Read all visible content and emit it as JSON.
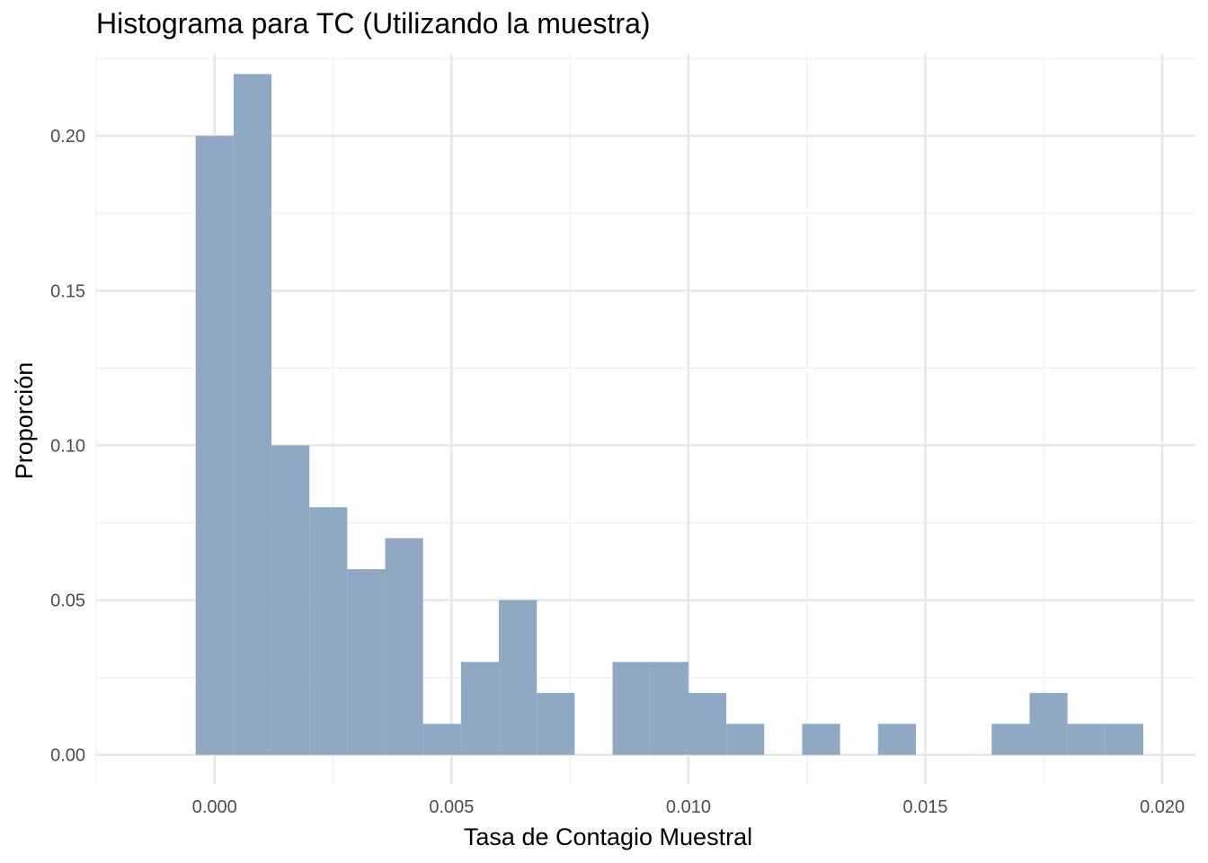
{
  "chart_data": {
    "type": "bar",
    "title": "Histograma para TC (Utilizando la muestra)",
    "xlabel": "Tasa de Contagio Muestral",
    "ylabel": "Proporción",
    "xlim": [
      -0.0025,
      0.0207
    ],
    "ylim": [
      -0.0094,
      0.2265
    ],
    "x_ticks": [
      0.0,
      0.005,
      0.01,
      0.015,
      0.02
    ],
    "x_tick_labels": [
      "0.000",
      "0.005",
      "0.010",
      "0.015",
      "0.020"
    ],
    "y_ticks": [
      0.0,
      0.05,
      0.1,
      0.15,
      0.2
    ],
    "y_tick_labels": [
      "0.00",
      "0.05",
      "0.10",
      "0.15",
      "0.20"
    ],
    "bin_width": 0.0008,
    "bins": [
      {
        "center": 0.0,
        "value": 0.2
      },
      {
        "center": 0.0008,
        "value": 0.22
      },
      {
        "center": 0.0016,
        "value": 0.1
      },
      {
        "center": 0.0024,
        "value": 0.08
      },
      {
        "center": 0.0032,
        "value": 0.06
      },
      {
        "center": 0.004,
        "value": 0.07
      },
      {
        "center": 0.0048,
        "value": 0.01
      },
      {
        "center": 0.0056,
        "value": 0.03
      },
      {
        "center": 0.0064,
        "value": 0.05
      },
      {
        "center": 0.0072,
        "value": 0.02
      },
      {
        "center": 0.008,
        "value": 0.0
      },
      {
        "center": 0.0088,
        "value": 0.03
      },
      {
        "center": 0.0096,
        "value": 0.03
      },
      {
        "center": 0.0104,
        "value": 0.02
      },
      {
        "center": 0.0112,
        "value": 0.01
      },
      {
        "center": 0.012,
        "value": 0.0
      },
      {
        "center": 0.0128,
        "value": 0.01
      },
      {
        "center": 0.0136,
        "value": 0.0
      },
      {
        "center": 0.0144,
        "value": 0.01
      },
      {
        "center": 0.0152,
        "value": 0.0
      },
      {
        "center": 0.016,
        "value": 0.0
      },
      {
        "center": 0.0168,
        "value": 0.01
      },
      {
        "center": 0.0176,
        "value": 0.02
      },
      {
        "center": 0.0184,
        "value": 0.01
      },
      {
        "center": 0.0192,
        "value": 0.01
      }
    ],
    "bar_color": "#8fa8c3",
    "grid": true,
    "grid_major_color": "#e6e6e6",
    "grid_minor_color": "#efefef",
    "legend": "none"
  }
}
